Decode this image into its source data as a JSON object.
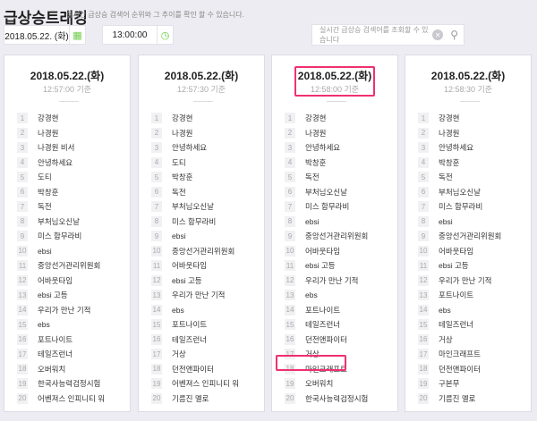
{
  "header": {
    "title": "급상승트래킹",
    "subtitle": "실시간 급상승 검색어 순위와 그 추이를 확인 할 수 있습니다."
  },
  "controls": {
    "date": "2018.05.22. (화)",
    "time": "13:00:00",
    "search_placeholder": "실시간 급상승 검색어를 조회할 수 있습니다",
    "calendar_icon": "calendar-icon",
    "clock_icon": "clock-icon"
  },
  "highlight_color": "#f0306e",
  "cards": [
    {
      "date": "2018.05.22.(화)",
      "time": "12:57:00 기준",
      "items": [
        "강경현",
        "나경원",
        "나경원 비서",
        "안녕하세요",
        "도티",
        "박창훈",
        "독전",
        "부처님오신날",
        "미스 함무라비",
        "ebsi",
        "중앙선거관리위원회",
        "어바웃타임",
        "ebsi 고등",
        "우리가 만난 기적",
        "ebs",
        "포트나이트",
        "테일즈런너",
        "오버워치",
        "한국사능력검정시험",
        "어벤져스 인피니티 워"
      ]
    },
    {
      "date": "2018.05.22.(화)",
      "time": "12:57:30 기준",
      "items": [
        "강경현",
        "나경원",
        "안녕하세요",
        "도티",
        "박창훈",
        "독전",
        "부처님오신날",
        "미스 함무라비",
        "ebsi",
        "중앙선거관리위원회",
        "어바웃타임",
        "ebsi 고등",
        "우리가 만난 기적",
        "ebs",
        "포트나이트",
        "테일즈런너",
        "거상",
        "던전앤파이터",
        "어벤져스 인피니티 워",
        "기름진 멜로"
      ]
    },
    {
      "date": "2018.05.22.(화)",
      "time": "12:58:00 기준",
      "items": [
        "강경현",
        "나경원",
        "안녕하세요",
        "박창훈",
        "독전",
        "부처님오신날",
        "미스 함무라비",
        "ebsi",
        "중앙선거관리위원회",
        "어바웃타임",
        "ebsi 고등",
        "우리가 만난 기적",
        "ebs",
        "포트나이트",
        "테일즈런너",
        "던전앤파이터",
        "거상",
        "마인크래프트",
        "오버워치",
        "한국사능력검정시험"
      ]
    },
    {
      "date": "2018.05.22.(화)",
      "time": "12:58:30 기준",
      "items": [
        "강경현",
        "나경원",
        "안녕하세요",
        "박창훈",
        "독전",
        "부처님오신날",
        "미스 함무라비",
        "ebsi",
        "중앙선거관리위원회",
        "어바웃타임",
        "ebsi 고등",
        "우리가 만난 기적",
        "포트나이트",
        "ebs",
        "테일즈런너",
        "거상",
        "마인크래프트",
        "던전앤파이터",
        "구본무",
        "기름진 멜로"
      ]
    }
  ]
}
